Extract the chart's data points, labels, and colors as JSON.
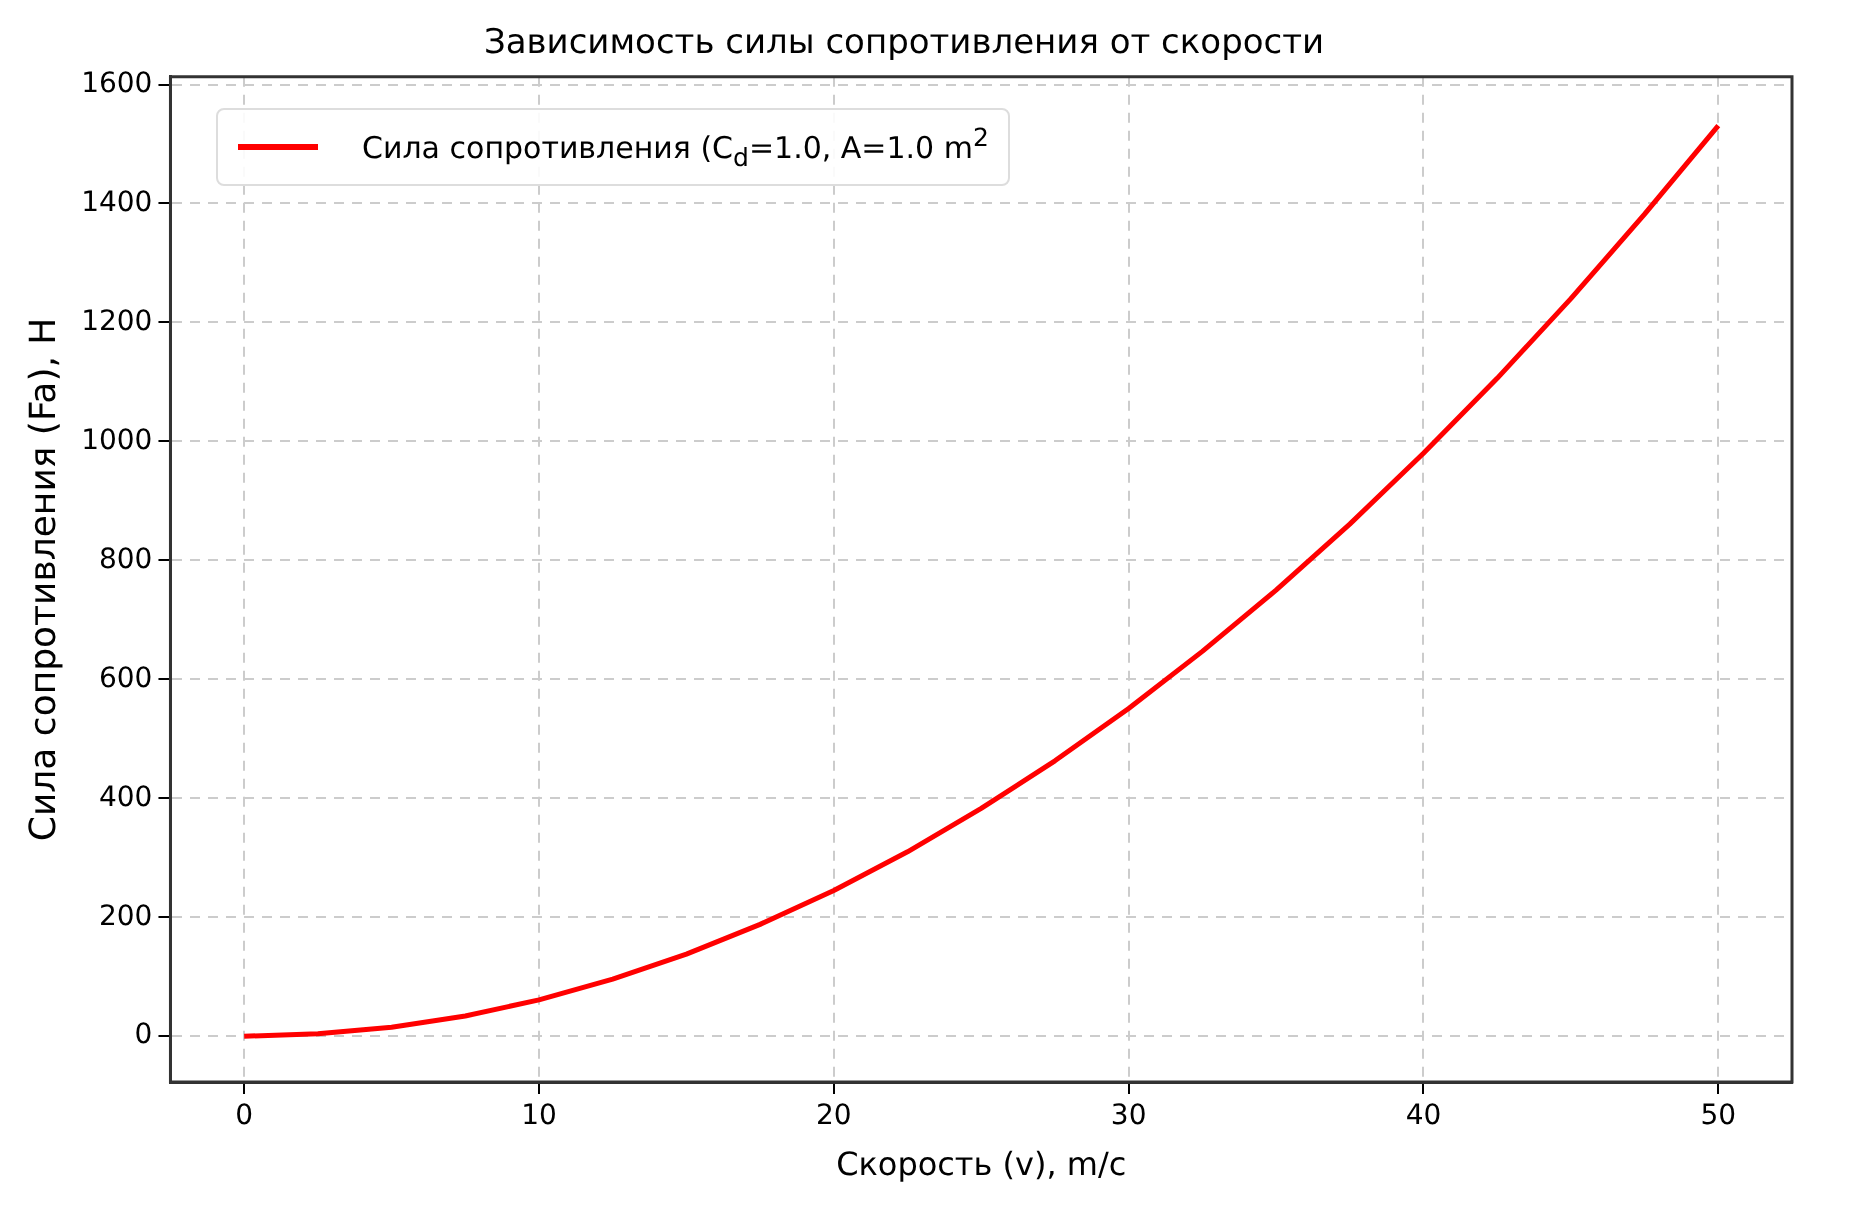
{
  "chart_data": {
    "type": "line",
    "title": "Зависимость силы сопротивления от скорости",
    "xlabel": "Скорость (v), m/c",
    "ylabel": "Сила сопротивления (Fa), Н",
    "x": [
      0,
      2.5,
      5,
      7.5,
      10,
      12.5,
      15,
      17.5,
      20,
      22.5,
      25,
      27.5,
      30,
      32.5,
      35,
      37.5,
      40,
      42.5,
      45,
      47.5,
      50
    ],
    "series": [
      {
        "name": "Сила сопротивления (C$_{d}$=1.0, A=1.0 m$^{2}$",
        "color": "#ff0000",
        "values": [
          0,
          4,
          15,
          34,
          61,
          96,
          138,
          188,
          245,
          310,
          383,
          463,
          551,
          647,
          750,
          861,
          980,
          1106,
          1240,
          1382,
          1531
        ]
      }
    ],
    "xlim": [
      -2.5,
      52.5
    ],
    "xticks": [
      0,
      10,
      20,
      30,
      40,
      50
    ],
    "ylim": [
      -77,
      1613
    ],
    "yticks": [
      0,
      200,
      400,
      600,
      800,
      1000,
      1200,
      1400,
      1600
    ],
    "grid": true,
    "legend": "top left",
    "marker": "none",
    "line_style": "solid"
  }
}
